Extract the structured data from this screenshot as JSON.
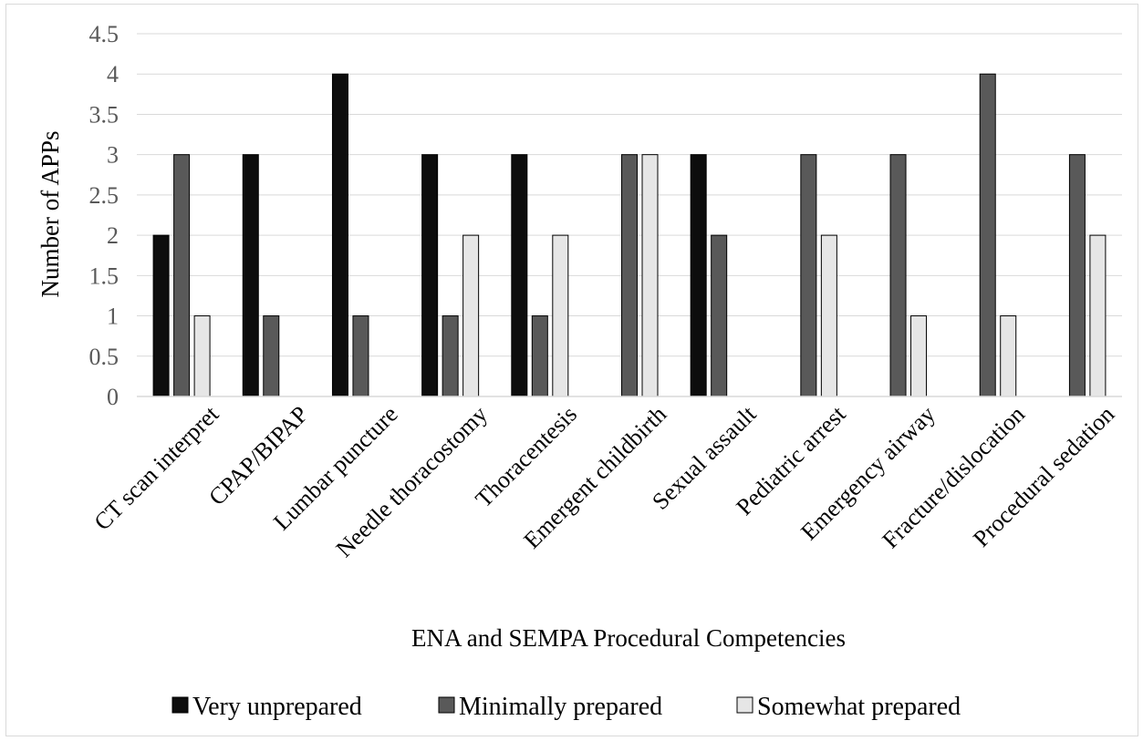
{
  "chart_data": {
    "type": "bar",
    "title": "",
    "xlabel": "ENA and SEMPA Procedural Competencies",
    "ylabel": "Number of APPs",
    "ylim": [
      0,
      4.5
    ],
    "yticks": [
      "0",
      "0.5",
      "1",
      "1.5",
      "2",
      "2.5",
      "3",
      "3.5",
      "4",
      "4.5"
    ],
    "grid": true,
    "legend_position": "bottom",
    "categories": [
      "CT scan interpret",
      "CPAP/BIPAP",
      "Lumbar puncture",
      "Needle thoracostomy",
      "Thoracentesis",
      "Emergent childbirth",
      "Sexual assault",
      "Pediatric arrest",
      "Emergency airway",
      "Fracture/dislocation",
      "Procedural sedation"
    ],
    "series": [
      {
        "name": "Very unprepared",
        "color": "#0d0d0d",
        "values": [
          2,
          3,
          4,
          3,
          3,
          0,
          3,
          0,
          0,
          0,
          0
        ]
      },
      {
        "name": "Minimally prepared",
        "color": "#595959",
        "values": [
          3,
          1,
          1,
          1,
          1,
          3,
          2,
          3,
          3,
          4,
          3
        ]
      },
      {
        "name": "Somewhat prepared",
        "color": "#e6e6e6",
        "values": [
          1,
          0,
          0,
          2,
          2,
          3,
          0,
          2,
          1,
          1,
          2
        ]
      }
    ]
  }
}
